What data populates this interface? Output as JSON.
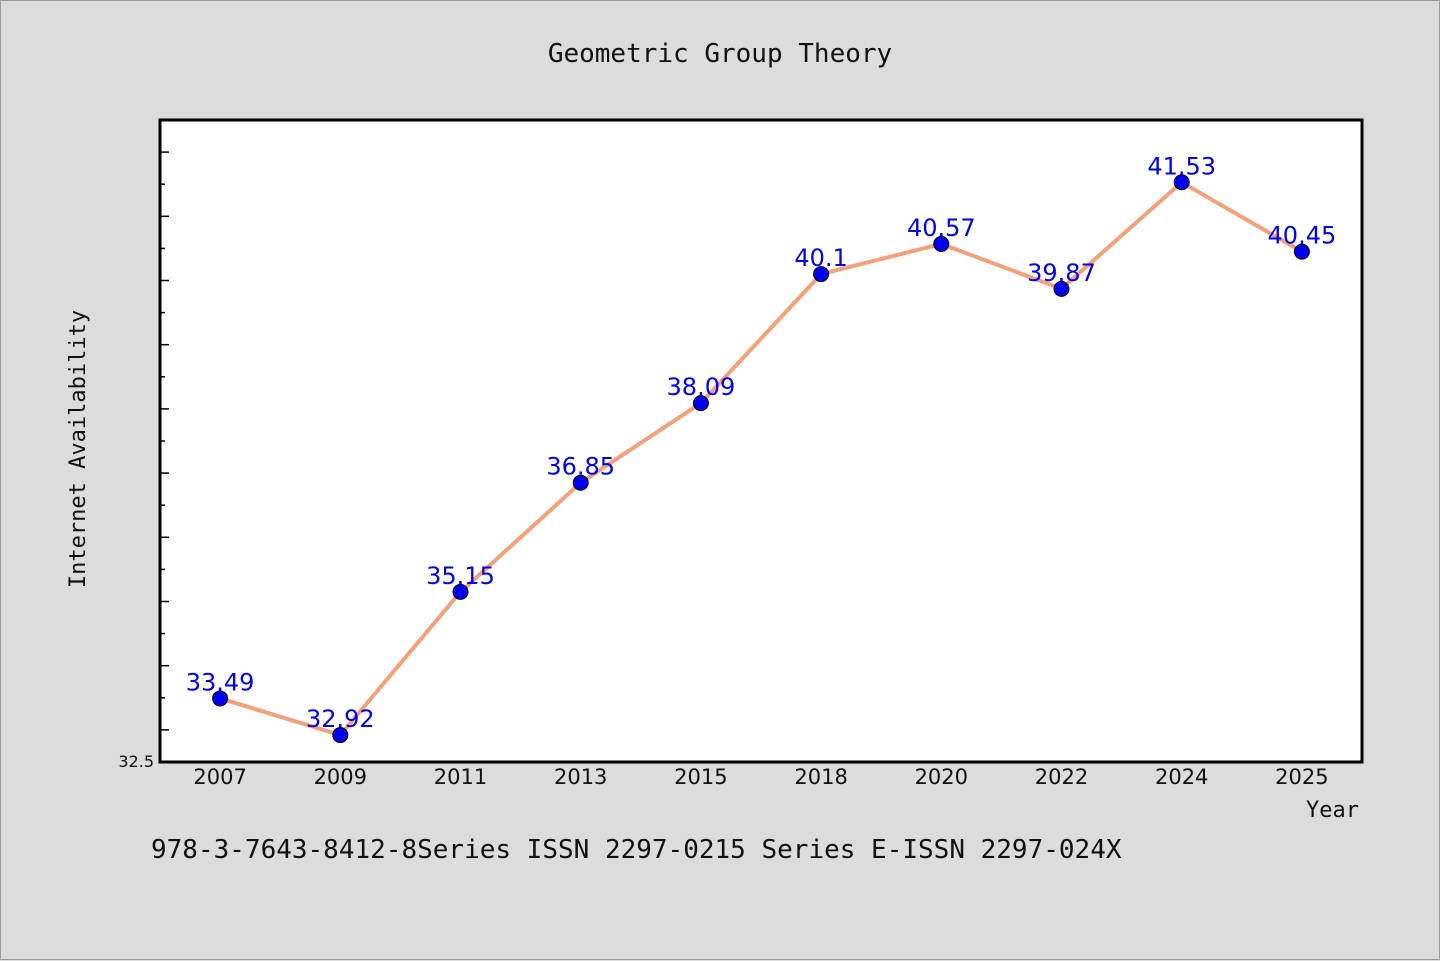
{
  "chart_data": {
    "type": "line",
    "title": "Geometric Group Theory",
    "xlabel": "Year",
    "ylabel": "Internet Availability",
    "categories": [
      "2007",
      "2009",
      "2011",
      "2013",
      "2015",
      "2018",
      "2020",
      "2022",
      "2024",
      "2025"
    ],
    "series": [
      {
        "values": [
          33.49,
          32.92,
          35.15,
          36.85,
          38.09,
          40.1,
          40.57,
          39.87,
          41.53,
          40.45
        ],
        "labels": [
          "33.49",
          "32.92",
          "35.15",
          "36.85",
          "38.09",
          "40.1",
          "40.57",
          "39.87",
          "41.53",
          "40.45"
        ],
        "line_color": "#f4a07a",
        "marker_color": "#0000ee",
        "label_color": "#0000ee"
      }
    ],
    "ylim": [
      32.5,
      42.5
    ],
    "y_tick_label": "32.5",
    "grid": false,
    "legend": "none"
  },
  "footer": "978-3-7643-8412-8Series ISSN 2297-0215 Series E-ISSN 2297-024X"
}
